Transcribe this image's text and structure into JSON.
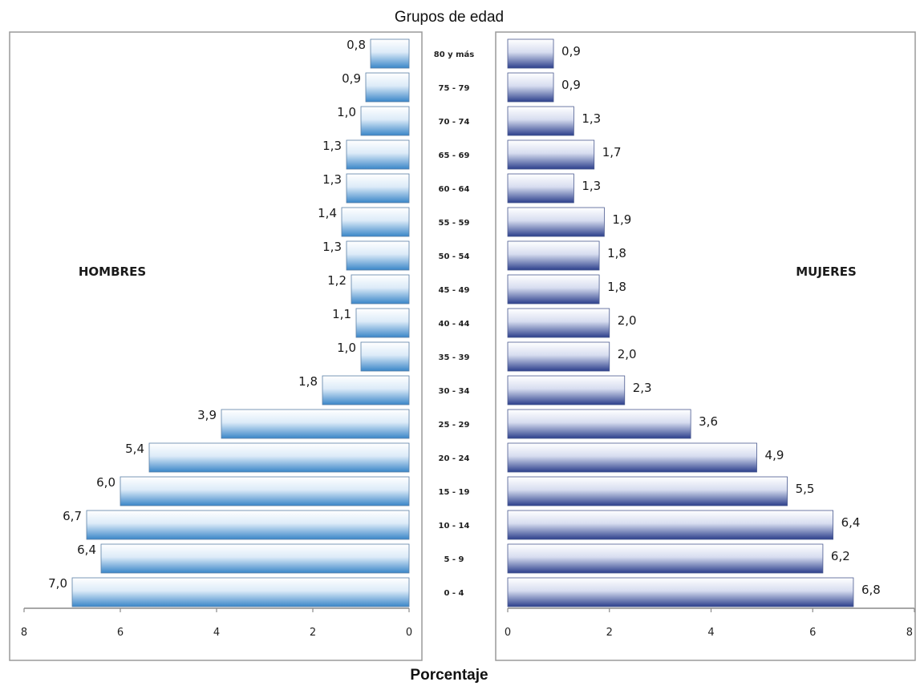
{
  "chart_data": {
    "type": "bar",
    "title": "Grupos de edad",
    "xlabel": "Porcentaje",
    "categories": [
      "0 - 4",
      "5 - 9",
      "10 - 14",
      "15 - 19",
      "20 - 24",
      "25 - 29",
      "30 - 34",
      "35 - 39",
      "40 - 44",
      "45 - 49",
      "50 - 54",
      "55 - 59",
      "60 - 64",
      "65 - 69",
      "70 - 74",
      "75 - 79",
      "80 y más"
    ],
    "series": [
      {
        "name": "HOMBRES",
        "values": [
          7.0,
          6.4,
          6.7,
          6.0,
          5.4,
          3.9,
          1.8,
          1.0,
          1.1,
          1.2,
          1.3,
          1.4,
          1.3,
          1.3,
          1.0,
          0.9,
          0.8
        ],
        "labels": [
          "7,0",
          "6,4",
          "6,7",
          "6,0",
          "5,4",
          "3,9",
          "1,8",
          "1,0",
          "1,1",
          "1,2",
          "1,3",
          "1,4",
          "1,3",
          "1,3",
          "1,0",
          "0,9",
          "0,8"
        ]
      },
      {
        "name": "MUJERES",
        "values": [
          6.8,
          6.2,
          6.4,
          5.5,
          4.9,
          3.6,
          2.3,
          2.0,
          2.0,
          1.8,
          1.8,
          1.9,
          1.3,
          1.7,
          1.3,
          0.9,
          0.9
        ],
        "labels": [
          "6,8",
          "6,2",
          "6,4",
          "5,5",
          "4,9",
          "3,6",
          "2,3",
          "2,0",
          "2,0",
          "1,8",
          "1,8",
          "1,9",
          "1,3",
          "1,7",
          "1,3",
          "0,9",
          "0,9"
        ]
      }
    ],
    "xlim": [
      0,
      8
    ],
    "x_ticks": [
      "0",
      "2",
      "4",
      "6",
      "8"
    ],
    "left_x_ticks": [
      "8",
      "6",
      "4",
      "2",
      "0"
    ],
    "grid": false,
    "legend": "none",
    "colors": {
      "male_dark": "#3a86c8",
      "male_light": "#ffffff",
      "female_dark": "#2c3f8c",
      "female_light": "#ffffff"
    }
  }
}
